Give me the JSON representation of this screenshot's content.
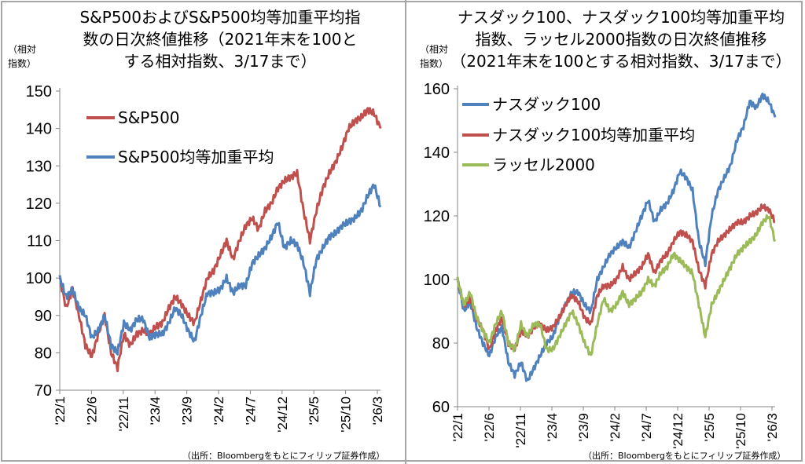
{
  "chart_data": [
    {
      "type": "line",
      "title_lines": [
        "S&P500およびS&P500均等加重平均指",
        "数の日次終値推移（2021年末を100と",
        "する相対指数、3/17まで）"
      ],
      "ylabel_lines": [
        "（相対",
        "指数）"
      ],
      "ylim": [
        70,
        150
      ],
      "yticks": [
        "70",
        "80",
        "90",
        "100",
        "110",
        "120",
        "130",
        "140",
        "150"
      ],
      "xticks": [
        "'22/1",
        "'22/6",
        "'22/11",
        "'23/4",
        "'23/9",
        "'24/2",
        "'24/7",
        "'24/12",
        "'25/5",
        "'25/10",
        "'26/3"
      ],
      "x_frequency": "monthly from 2022/1 to 2026/3",
      "legend_placement": "top-left",
      "grid": false,
      "source": "（出所：Bloombergをもとにフィリップ証券作成）",
      "series": [
        {
          "name": "S&P500",
          "color": "#c0504d",
          "values": [
            100,
            92,
            97,
            90,
            82,
            79,
            85,
            90,
            80,
            76,
            85,
            82,
            85,
            86,
            85,
            87,
            88,
            92,
            95,
            93,
            90,
            88,
            94,
            100,
            102,
            106,
            110,
            105,
            110,
            114,
            116,
            113,
            118,
            120,
            124,
            126,
            127,
            128,
            118,
            110,
            118,
            124,
            128,
            131,
            135,
            140,
            142,
            143,
            145,
            144,
            140
          ]
        },
        {
          "name": "S&P500均等加重平均",
          "color": "#4f81bd",
          "values": [
            100,
            95,
            97,
            92,
            90,
            84,
            86,
            90,
            82,
            80,
            88,
            86,
            89,
            89,
            84,
            85,
            85,
            88,
            92,
            90,
            86,
            83,
            90,
            96,
            96,
            97,
            100,
            96,
            98,
            98,
            104,
            106,
            108,
            111,
            115,
            108,
            110,
            109,
            104,
            96,
            105,
            108,
            111,
            112,
            114,
            115,
            116,
            118,
            122,
            125,
            119
          ]
        }
      ]
    },
    {
      "type": "line",
      "title_lines": [
        "ナスダック100、ナスダック100均等加重平均",
        "指数、ラッセル2000指数の日次終値推移",
        "（2021年末を100とする相対指数、3/17まで）"
      ],
      "ylabel_lines": [
        "（相対",
        "指数）"
      ],
      "ylim": [
        60,
        160
      ],
      "yticks": [
        "60",
        "80",
        "100",
        "120",
        "140",
        "160"
      ],
      "xticks": [
        "'22/1",
        "'22/6",
        "'22/11",
        "'23/4",
        "'23/9",
        "'24/2",
        "'24/7",
        "'24/12",
        "'25/5",
        "'25/10",
        "'26/3"
      ],
      "x_frequency": "monthly from 2022/1 to 2026/3",
      "legend_placement": "top-left",
      "grid": false,
      "source": "（出所：Bloombergをもとにフィリップ証券作成）",
      "series": [
        {
          "name": "ナスダック100",
          "color": "#4f81bd",
          "values": [
            100,
            90,
            93,
            85,
            80,
            76,
            82,
            85,
            74,
            70,
            74,
            68,
            72,
            76,
            80,
            82,
            88,
            92,
            96,
            96,
            92,
            90,
            100,
            104,
            108,
            110,
            112,
            110,
            115,
            120,
            125,
            118,
            122,
            124,
            128,
            134,
            132,
            128,
            112,
            105,
            120,
            128,
            132,
            136,
            144,
            148,
            156,
            154,
            158,
            156,
            151
          ]
        },
        {
          "name": "ナスダック100均等加重平均",
          "color": "#c0504d",
          "values": [
            100,
            92,
            94,
            88,
            84,
            78,
            84,
            88,
            80,
            78,
            84,
            82,
            85,
            86,
            84,
            85,
            88,
            92,
            95,
            93,
            88,
            86,
            95,
            98,
            98,
            100,
            104,
            100,
            102,
            104,
            108,
            102,
            106,
            108,
            112,
            115,
            114,
            112,
            103,
            98,
            108,
            112,
            114,
            116,
            118,
            118,
            120,
            121,
            123,
            122,
            118
          ]
        },
        {
          "name": "ラッセル2000",
          "color": "#9bbb59",
          "values": [
            100,
            92,
            96,
            88,
            84,
            80,
            86,
            90,
            80,
            78,
            86,
            82,
            86,
            86,
            78,
            78,
            82,
            86,
            90,
            86,
            80,
            76,
            86,
            94,
            90,
            92,
            96,
            92,
            94,
            96,
            100,
            98,
            102,
            104,
            108,
            106,
            104,
            102,
            92,
            82,
            92,
            96,
            100,
            104,
            108,
            110,
            112,
            114,
            118,
            120,
            112
          ]
        }
      ]
    }
  ]
}
